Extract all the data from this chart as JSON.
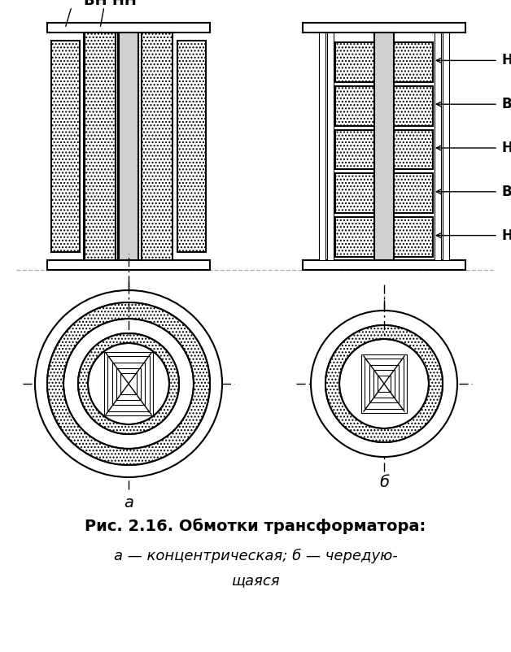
{
  "title": "Рис. 2.16. Обмотки трансформатора:",
  "subtitle": "а — концентрическая; б — чередую-\nщаяся",
  "label_a": "а",
  "label_b": "б",
  "label_VN": "ВН",
  "label_NN": "НН",
  "bg_color": "#ffffff",
  "line_color": "#000000",
  "hatch_color": "#000000",
  "hatch_pattern": "....",
  "fig_width": 6.28,
  "fig_height": 8.02
}
